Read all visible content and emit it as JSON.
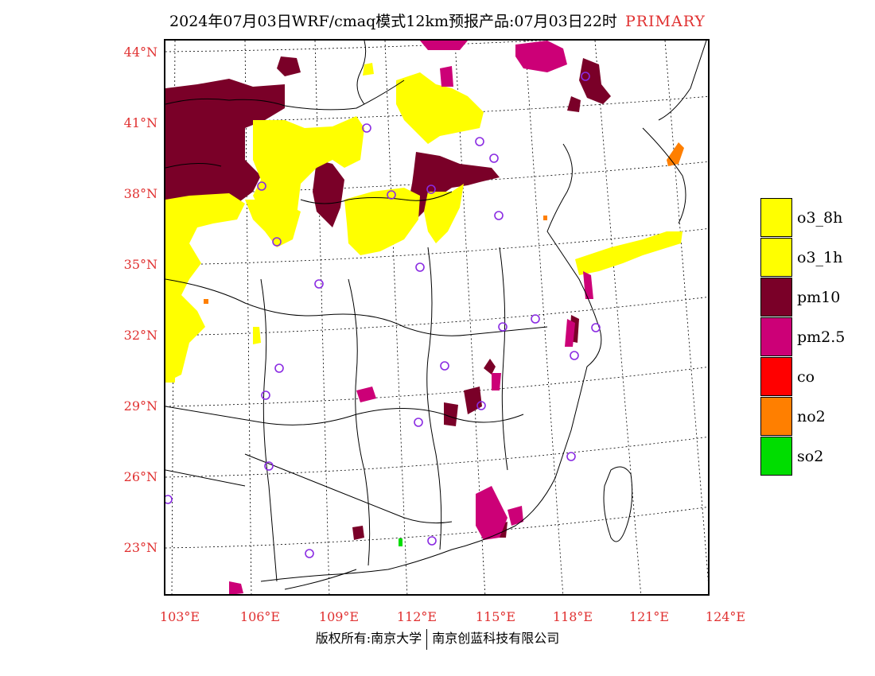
{
  "title": {
    "main": "2024年07月03日WRF/cmaq模式12km预报产品:07月03日22时",
    "tag": "PRIMARY"
  },
  "axes": {
    "lat_labels": [
      "44°N",
      "41°N",
      "38°N",
      "35°N",
      "32°N",
      "29°N",
      "26°N",
      "23°N"
    ],
    "lon_labels": [
      "103°E",
      "106°E",
      "109°E",
      "112°E",
      "115°E",
      "118°E",
      "121°E",
      "124°E"
    ]
  },
  "legend": [
    {
      "label": "o3_8h",
      "color": "#ffff00"
    },
    {
      "label": "o3_1h",
      "color": "#ffff00"
    },
    {
      "label": "pm10",
      "color": "#7a0028"
    },
    {
      "label": "pm2.5",
      "color": "#cc0077"
    },
    {
      "label": "co",
      "color": "#ff0000"
    },
    {
      "label": "no2",
      "color": "#ff7f00"
    },
    {
      "label": "so2",
      "color": "#00dd00"
    }
  ],
  "footer": {
    "left": "版权所有:南京大学",
    "right": "南京创蓝科技有限公司"
  }
}
